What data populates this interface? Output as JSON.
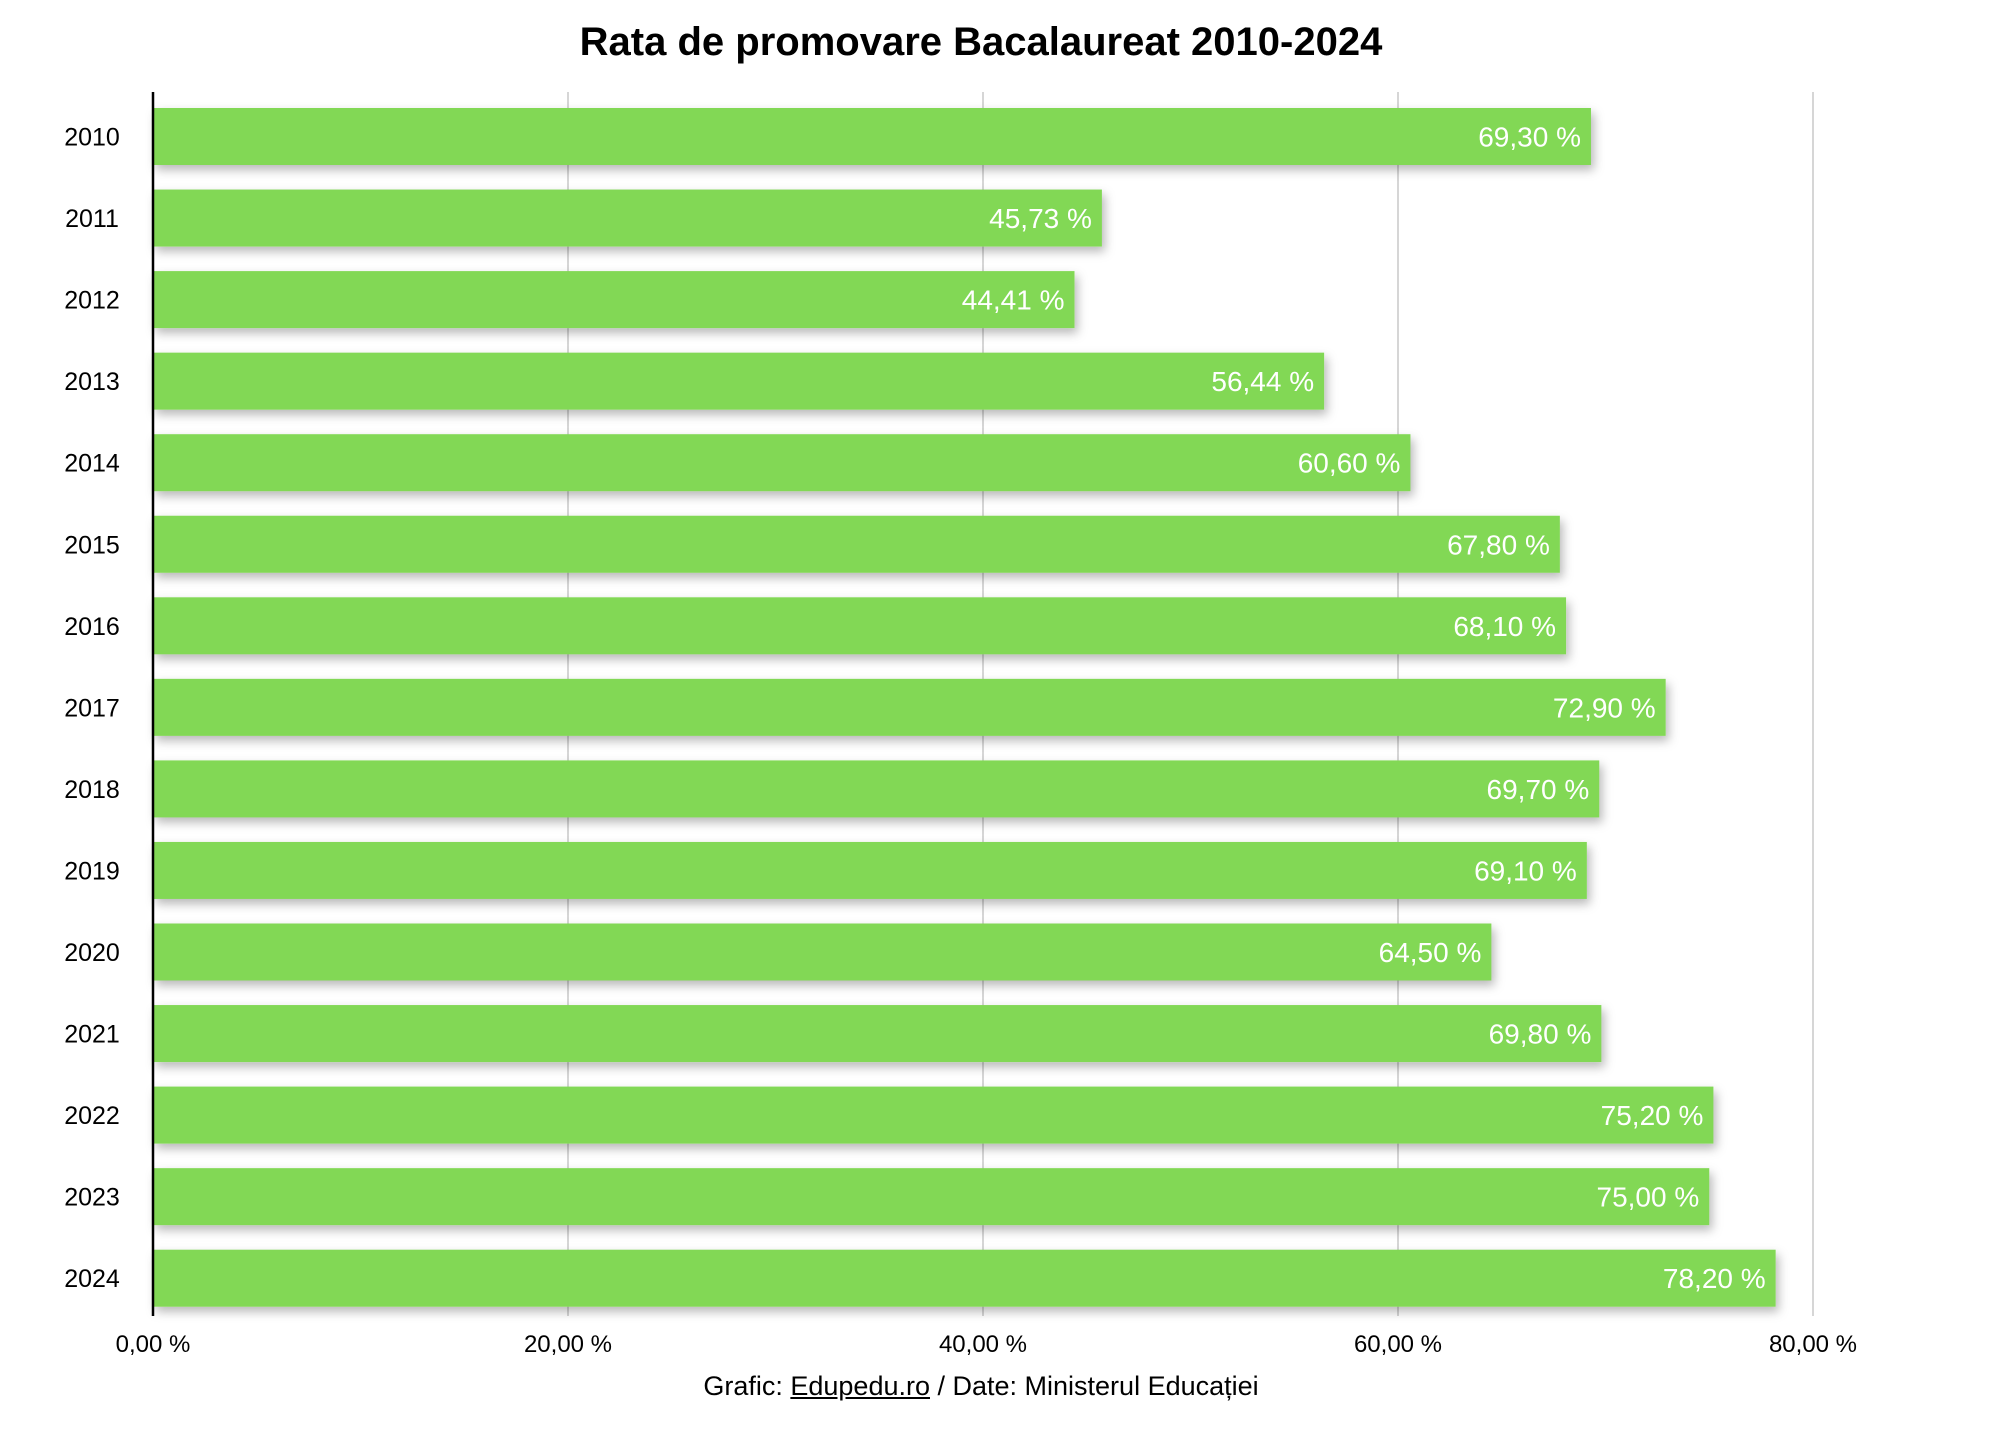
{
  "chart_data": {
    "type": "bar",
    "orientation": "horizontal",
    "title": "Rata de promovare Bacalaureat 2010-2024",
    "categories": [
      "2010",
      "2011",
      "2012",
      "2013",
      "2014",
      "2015",
      "2016",
      "2017",
      "2018",
      "2019",
      "2020",
      "2021",
      "2022",
      "2023",
      "2024"
    ],
    "values": [
      69.3,
      45.73,
      44.41,
      56.44,
      60.6,
      67.8,
      68.1,
      72.9,
      69.7,
      69.1,
      64.5,
      69.8,
      75.2,
      75.0,
      78.2
    ],
    "data_labels": [
      "69,30 %",
      "45,73 %",
      "44,41 %",
      "56,44 %",
      "60,60 %",
      "67,80 %",
      "68,10 %",
      "72,90 %",
      "69,70 %",
      "69,10 %",
      "64,50 %",
      "69,80 %",
      "75,20 %",
      "75,00 %",
      "78,20 %"
    ],
    "xlim": [
      0,
      80
    ],
    "x_ticks": [
      0,
      20,
      40,
      60,
      80
    ],
    "x_tick_labels": [
      "0,00 %",
      "20,00 %",
      "40,00 %",
      "60,00 %",
      "80,00 %"
    ],
    "xlabel": "",
    "ylabel": "",
    "grid": "vertical",
    "bar_color": "#82d855",
    "label_color": "#ffffff"
  },
  "footer": {
    "prefix": "Grafic: ",
    "link_text": "Edupedu.ro",
    "suffix": " / Date: Ministerul Educației"
  }
}
